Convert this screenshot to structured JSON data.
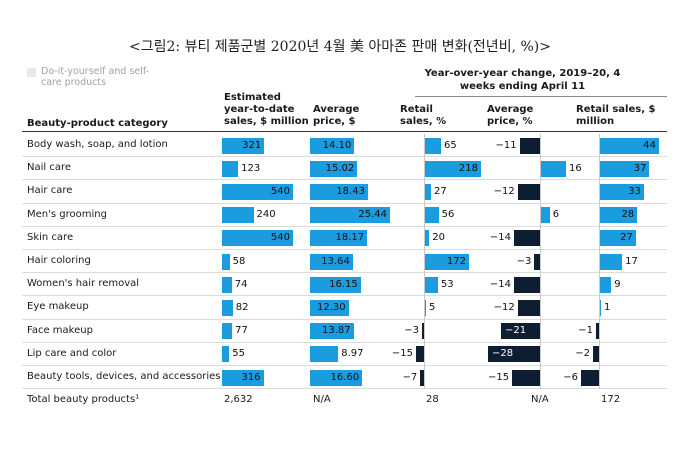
{
  "title": "<그림2: 뷰티 제품군별 2020년 4월 美 아마존 판매 변화(전년비, %)>",
  "legend": {
    "label": "Do-it-yourself and self-care products"
  },
  "yoy_header": "Year-over-year change, 2019–20, 4 weeks ending April 11",
  "columns": {
    "category": "Beauty-product category",
    "ytd_sales": "Estimated year-to-date sales, $ million",
    "avg_price": "Average price, $",
    "retail_pct": "Retail sales, %",
    "price_pct": "Average price, %",
    "retail_million": "Retail sales, $ million"
  },
  "chart_data": {
    "type": "table",
    "title": "Year-over-year change, 2019–20, 4 weeks ending April 11",
    "colors": {
      "diy": "#1b9cdf",
      "other": "#0d1e33"
    },
    "categories": [
      "Body wash, soap, and lotion",
      "Nail care",
      "Hair care",
      "Men's grooming",
      "Skin care",
      "Hair coloring",
      "Women's hair removal",
      "Eye makeup",
      "Face makeup",
      "Lip care and color",
      "Beauty tools, devices, and accessories"
    ],
    "diy": [
      true,
      true,
      true,
      true,
      true,
      true,
      true,
      true,
      true,
      true,
      true
    ],
    "series": [
      {
        "name": "Estimated year-to-date sales, $ million",
        "values": [
          321,
          123,
          540,
          240,
          540,
          58,
          74,
          82,
          77,
          55,
          316
        ]
      },
      {
        "name": "Average price, $",
        "values": [
          14.1,
          15.02,
          18.43,
          25.44,
          18.17,
          13.64,
          16.15,
          12.3,
          13.87,
          8.97,
          16.6
        ]
      },
      {
        "name": "Retail sales, %",
        "values": [
          65,
          218,
          27,
          56,
          20,
          172,
          53,
          5,
          -3,
          -15,
          -7
        ]
      },
      {
        "name": "Average price, %",
        "values": [
          -11,
          16,
          -12,
          6,
          -14,
          -3,
          -14,
          -12,
          -21,
          -28,
          -15
        ]
      },
      {
        "name": "Retail sales, $ million",
        "values": [
          44,
          37,
          33,
          28,
          27,
          17,
          9,
          1,
          -1,
          -2,
          -6
        ]
      }
    ],
    "total": {
      "label": "Total beauty products¹",
      "values": [
        "2,632",
        "N/A",
        "28",
        "N/A",
        "172"
      ]
    }
  }
}
